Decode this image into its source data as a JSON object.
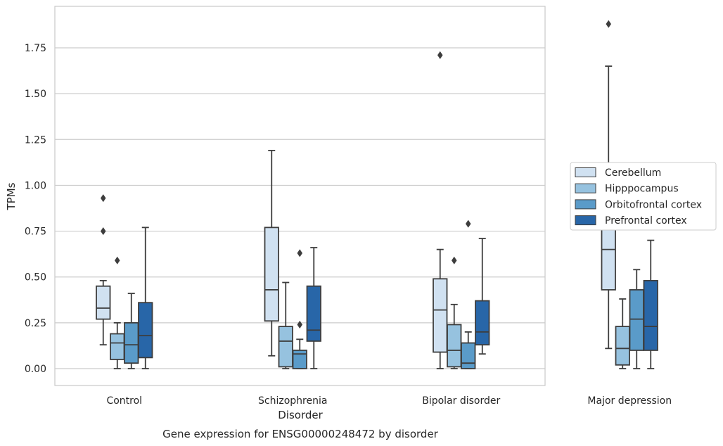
{
  "chart_data": {
    "type": "box",
    "xlabel": "Disorder",
    "ylabel": "TPMs",
    "caption": "Gene expression for ENSG00000248472 by disorder",
    "ylim": [
      -0.09,
      1.97
    ],
    "yticks": [
      "0.00",
      "0.25",
      "0.50",
      "0.75",
      "1.00",
      "1.25",
      "1.50",
      "1.75"
    ],
    "grid": "horizontal",
    "legend_position": "right",
    "categories": [
      "Control",
      "Schizophrenia",
      "Bipolar disorder",
      "Major depression"
    ],
    "series": [
      {
        "name": "Cerebellum",
        "color": "#d0e1f1",
        "boxes": [
          {
            "whislo": 0.13,
            "q1": 0.27,
            "med": 0.33,
            "q3": 0.45,
            "whishi": 0.48,
            "fliers": [
              0.75,
              0.93
            ]
          },
          {
            "whislo": 0.07,
            "q1": 0.26,
            "med": 0.43,
            "q3": 0.77,
            "whishi": 1.19,
            "fliers": []
          },
          {
            "whislo": 0.0,
            "q1": 0.09,
            "med": 0.32,
            "q3": 0.49,
            "whishi": 0.65,
            "fliers": [
              1.71
            ]
          },
          {
            "whislo": 0.11,
            "q1": 0.43,
            "med": 0.65,
            "q3": 0.96,
            "whishi": 1.65,
            "fliers": [
              1.88
            ]
          }
        ]
      },
      {
        "name": "Hipppocampus",
        "color": "#96c2df",
        "boxes": [
          {
            "whislo": 0.0,
            "q1": 0.05,
            "med": 0.14,
            "q3": 0.19,
            "whishi": 0.25,
            "fliers": [
              0.59
            ]
          },
          {
            "whislo": 0.0,
            "q1": 0.01,
            "med": 0.15,
            "q3": 0.23,
            "whishi": 0.47,
            "fliers": []
          },
          {
            "whislo": 0.0,
            "q1": 0.01,
            "med": 0.1,
            "q3": 0.24,
            "whishi": 0.35,
            "fliers": [
              0.59
            ]
          },
          {
            "whislo": 0.0,
            "q1": 0.02,
            "med": 0.11,
            "q3": 0.23,
            "whishi": 0.38,
            "fliers": []
          }
        ]
      },
      {
        "name": "Orbitofrontal cortex",
        "color": "#5a9bc9",
        "boxes": [
          {
            "whislo": 0.0,
            "q1": 0.03,
            "med": 0.13,
            "q3": 0.25,
            "whishi": 0.41,
            "fliers": []
          },
          {
            "whislo": 0.0,
            "q1": 0.0,
            "med": 0.08,
            "q3": 0.1,
            "whishi": 0.16,
            "fliers": [
              0.24,
              0.63
            ]
          },
          {
            "whislo": 0.0,
            "q1": 0.0,
            "med": 0.03,
            "q3": 0.14,
            "whishi": 0.2,
            "fliers": [
              0.79
            ]
          },
          {
            "whislo": 0.0,
            "q1": 0.1,
            "med": 0.27,
            "q3": 0.43,
            "whishi": 0.54,
            "fliers": []
          }
        ]
      },
      {
        "name": "Prefrontal cortex",
        "color": "#2866a8",
        "boxes": [
          {
            "whislo": 0.0,
            "q1": 0.06,
            "med": 0.18,
            "q3": 0.36,
            "whishi": 0.77,
            "fliers": []
          },
          {
            "whislo": 0.0,
            "q1": 0.15,
            "med": 0.21,
            "q3": 0.45,
            "whishi": 0.66,
            "fliers": []
          },
          {
            "whislo": 0.08,
            "q1": 0.13,
            "med": 0.2,
            "q3": 0.37,
            "whishi": 0.71,
            "fliers": []
          },
          {
            "whislo": 0.0,
            "q1": 0.1,
            "med": 0.23,
            "q3": 0.48,
            "whishi": 0.7,
            "fliers": []
          }
        ]
      }
    ]
  }
}
